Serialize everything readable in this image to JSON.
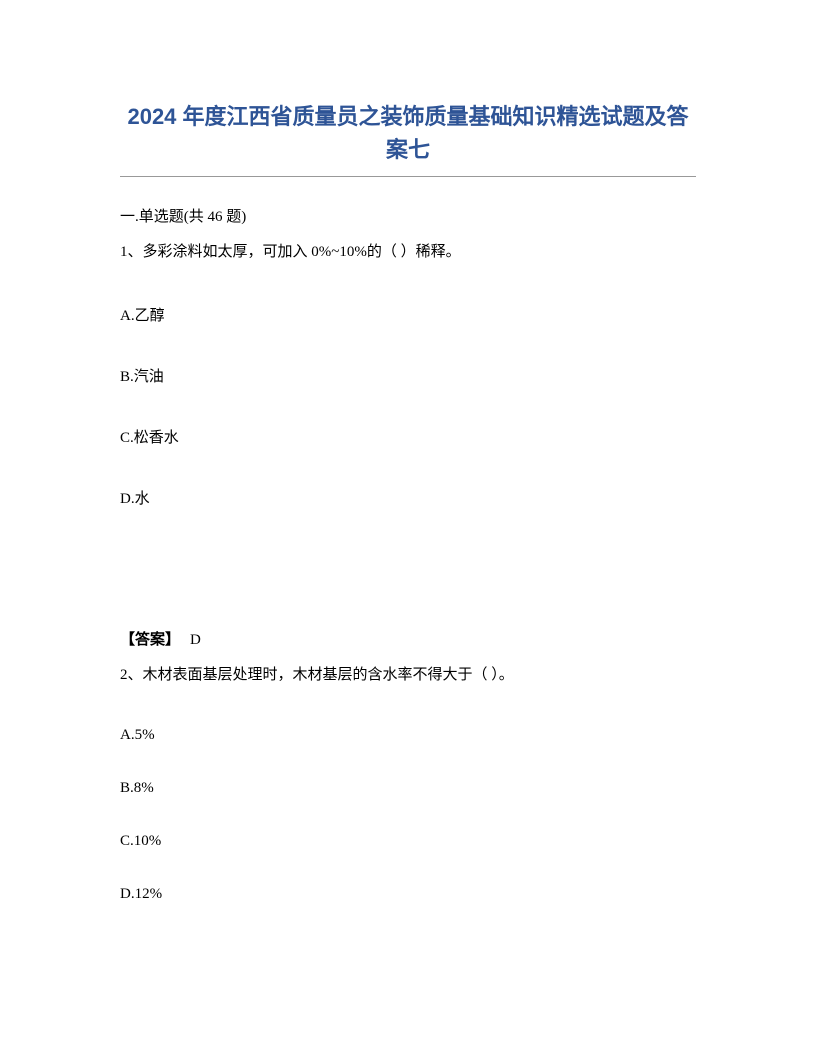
{
  "title": "2024 年度江西省质量员之装饰质量基础知识精选试题及答案七",
  "section_header": "一.单选题(共 46 题)",
  "q1": {
    "text": "1、多彩涂料如太厚，可加入 0%~10%的（ ）稀释。",
    "options": {
      "a": "A.乙醇",
      "b": "B.汽油",
      "c": "C.松香水",
      "d": "D.水"
    },
    "answer_label": "【答案】",
    "answer_value": "D"
  },
  "q2": {
    "text": "2、木材表面基层处理时，木材基层的含水率不得大于（ ）。",
    "options": {
      "a": "A.5%",
      "b": "B.8%",
      "c": "C.10%",
      "d": "D.12%"
    }
  }
}
